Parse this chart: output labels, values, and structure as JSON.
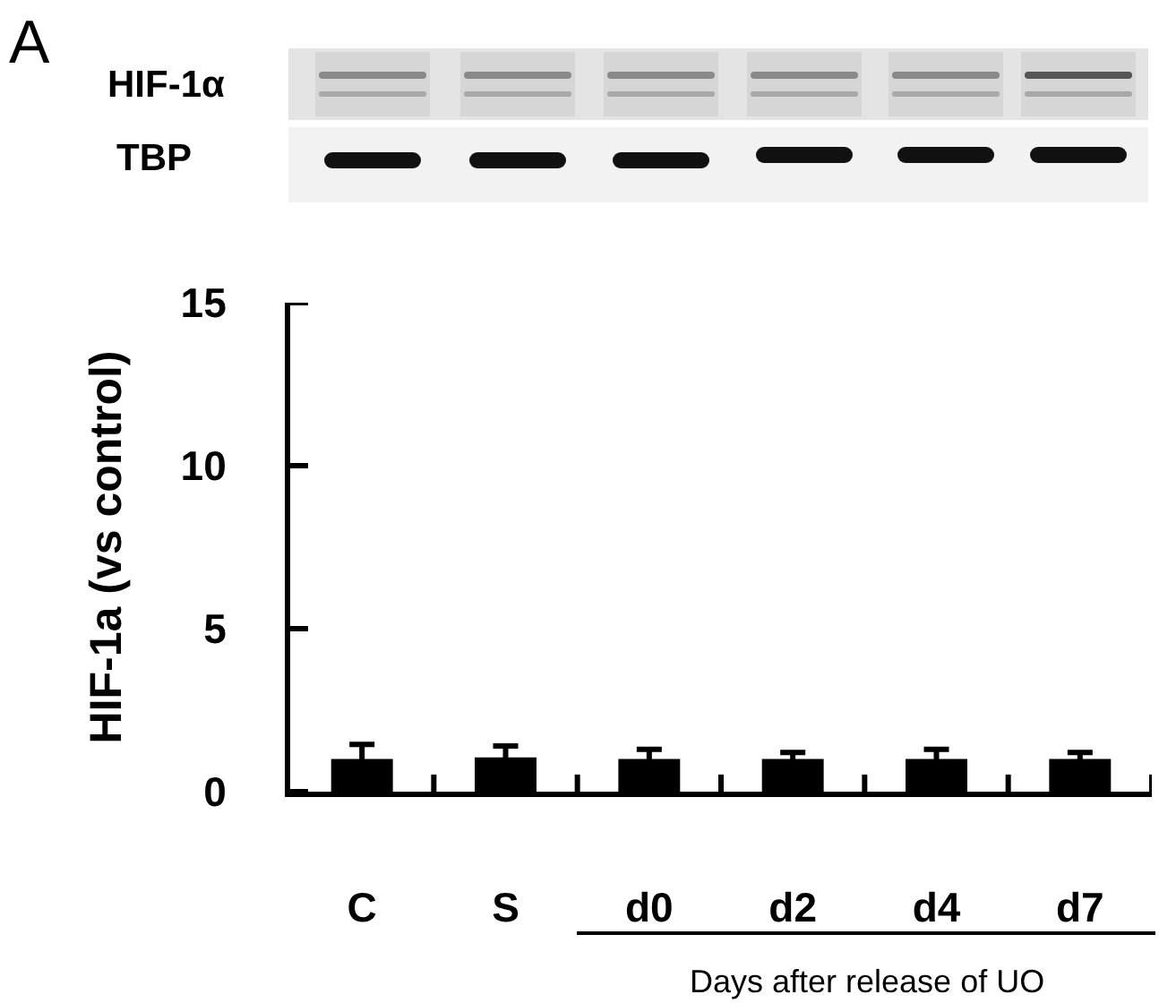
{
  "chart_data": {
    "type": "bar",
    "categories": [
      "C",
      "S",
      "d0",
      "d2",
      "d4",
      "d7"
    ],
    "values": [
      1.0,
      1.05,
      1.0,
      1.0,
      1.0,
      1.0
    ],
    "errors": [
      0.45,
      0.35,
      0.3,
      0.2,
      0.3,
      0.2
    ],
    "color": "#000000",
    "ylabel": "HIF-1a (vs control)",
    "ylim": [
      0,
      15
    ],
    "yticks": [
      0,
      5,
      10,
      15
    ],
    "annotations": [
      "A",
      "HIF-1α",
      "TBP",
      "Days after release of UO"
    ]
  }
}
